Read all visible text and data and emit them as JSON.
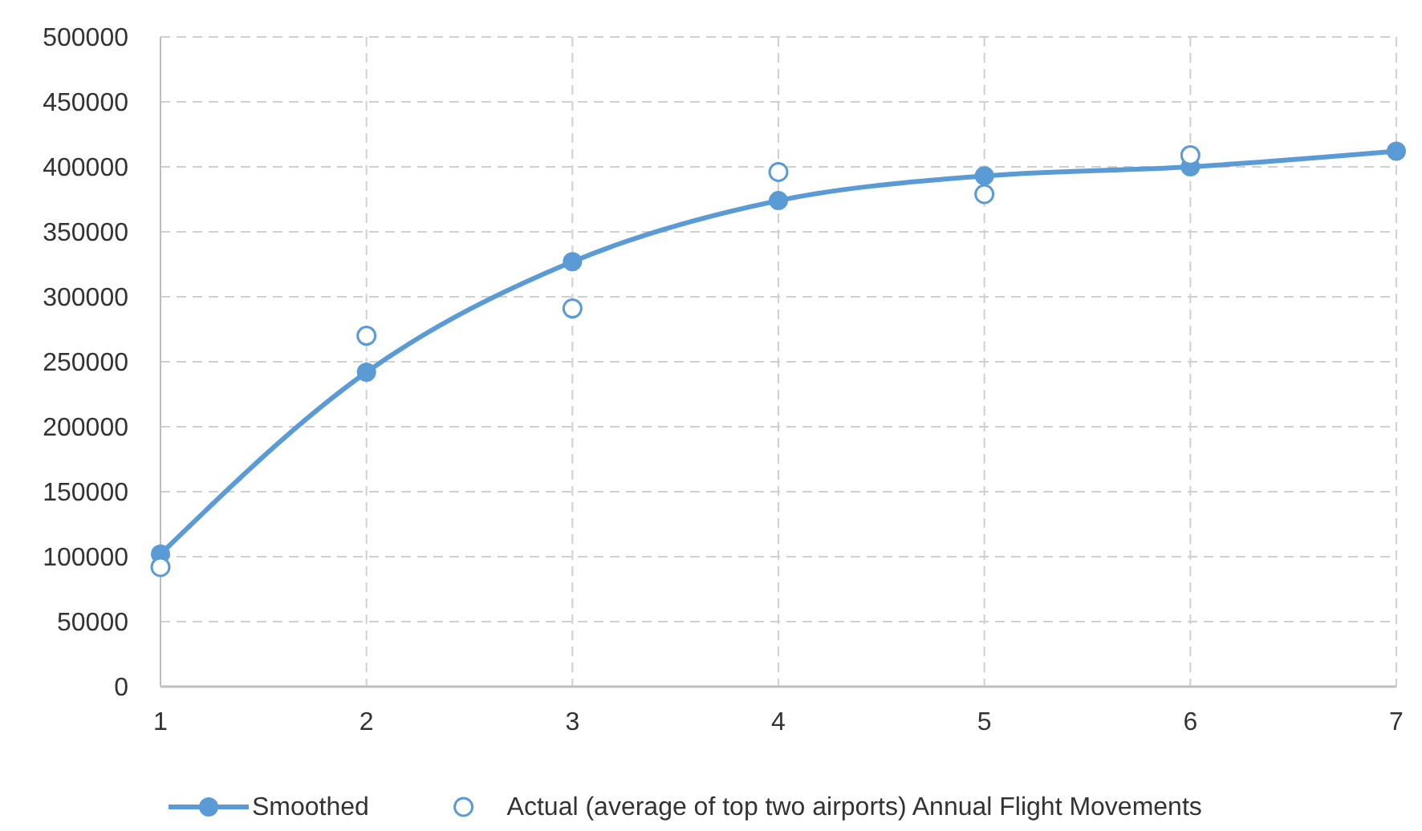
{
  "chart_data": {
    "type": "line",
    "x": [
      1,
      2,
      3,
      4,
      5,
      6,
      7
    ],
    "series": [
      {
        "name": "Smoothed",
        "color": "#5b9bd5",
        "values": [
          102000,
          242000,
          327000,
          374000,
          393000,
          400000,
          412000
        ]
      },
      {
        "name": "Actual (average of top two airports) Annual Flight Movements",
        "type": "scatter",
        "color": "#5b9bd5",
        "values": [
          92000,
          270000,
          291000,
          396000,
          379000,
          409000,
          null
        ]
      }
    ],
    "xlim": [
      1,
      7
    ],
    "xticks": [
      1,
      2,
      3,
      4,
      5,
      6,
      7
    ],
    "ylim": [
      0,
      500000
    ],
    "yticks": [
      0,
      50000,
      100000,
      150000,
      200000,
      250000,
      300000,
      350000,
      400000,
      450000,
      500000
    ],
    "grid": true,
    "legend": "bottom",
    "marker": "circle",
    "line_style": "solid"
  }
}
